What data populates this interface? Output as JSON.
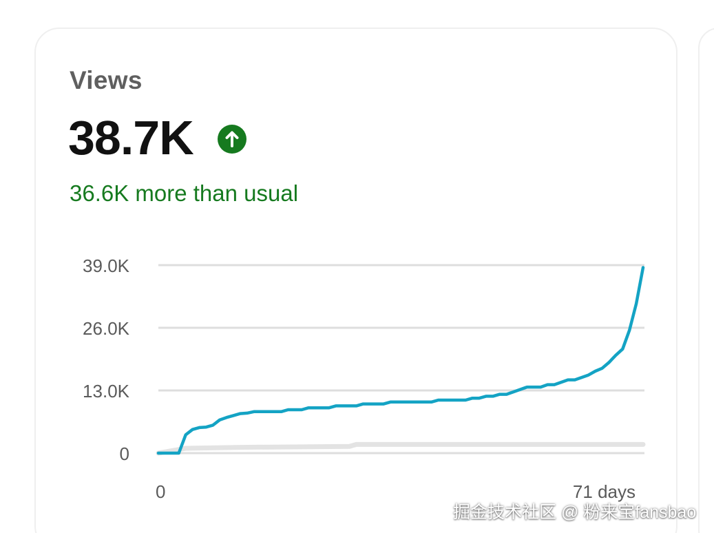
{
  "card": {
    "metric_label": "Views",
    "metric_value": "38.7K",
    "trend_icon": "arrow-up-circle-icon",
    "delta_text": "36.6K more than usual",
    "colors": {
      "accent": "#14a3c4",
      "positive": "#167a1f",
      "baseline": "#e3e3e3",
      "grid": "#dedede"
    }
  },
  "watermark": "掘金技术社区 @ 粉来宝fansbao",
  "chart_data": {
    "type": "line",
    "title": "",
    "xlabel": "",
    "ylabel": "",
    "ylim": [
      0,
      39000
    ],
    "xlim": [
      0,
      71
    ],
    "y_ticks": [
      {
        "value": 0,
        "label": "0"
      },
      {
        "value": 13000,
        "label": "13.0K"
      },
      {
        "value": 26000,
        "label": "26.0K"
      },
      {
        "value": 39000,
        "label": "39.0K"
      }
    ],
    "x_ticks": [
      {
        "value": 0,
        "label": "0"
      },
      {
        "value": 71,
        "label": "71 days"
      }
    ],
    "grid": true,
    "series": [
      {
        "color": "#14a3c4",
        "x": [
          0,
          2,
          3,
          4,
          5,
          6,
          7,
          8,
          9,
          10,
          11,
          12,
          13,
          14,
          15,
          16,
          17,
          18,
          19,
          20,
          21,
          22,
          23,
          24,
          25,
          26,
          27,
          28,
          29,
          30,
          31,
          32,
          33,
          34,
          35,
          36,
          37,
          38,
          39,
          40,
          41,
          42,
          43,
          44,
          45,
          46,
          47,
          48,
          49,
          50,
          51,
          52,
          53,
          54,
          55,
          56,
          57,
          58,
          59,
          60,
          61,
          62,
          63,
          64,
          65,
          66,
          67,
          68,
          69,
          70,
          71
        ],
        "y": [
          0,
          0,
          0,
          3800,
          4900,
          5300,
          5400,
          5800,
          6900,
          7400,
          7800,
          8200,
          8300,
          8600,
          8600,
          8600,
          8600,
          8600,
          9000,
          9000,
          9000,
          9400,
          9400,
          9400,
          9400,
          9800,
          9800,
          9800,
          9800,
          10200,
          10200,
          10200,
          10200,
          10600,
          10600,
          10600,
          10600,
          10600,
          10600,
          10600,
          11000,
          11000,
          11000,
          11000,
          11000,
          11400,
          11400,
          11800,
          11800,
          12200,
          12200,
          12700,
          13200,
          13700,
          13700,
          13700,
          14200,
          14200,
          14700,
          15200,
          15200,
          15700,
          16200,
          17000,
          17600,
          18800,
          20300,
          21600,
          25500,
          31000,
          38500
        ]
      },
      {
        "color": "#e3e3e3",
        "x": [
          0,
          4,
          12,
          28,
          29,
          71
        ],
        "y": [
          0,
          1000,
          1200,
          1400,
          1800,
          1800
        ]
      }
    ]
  }
}
